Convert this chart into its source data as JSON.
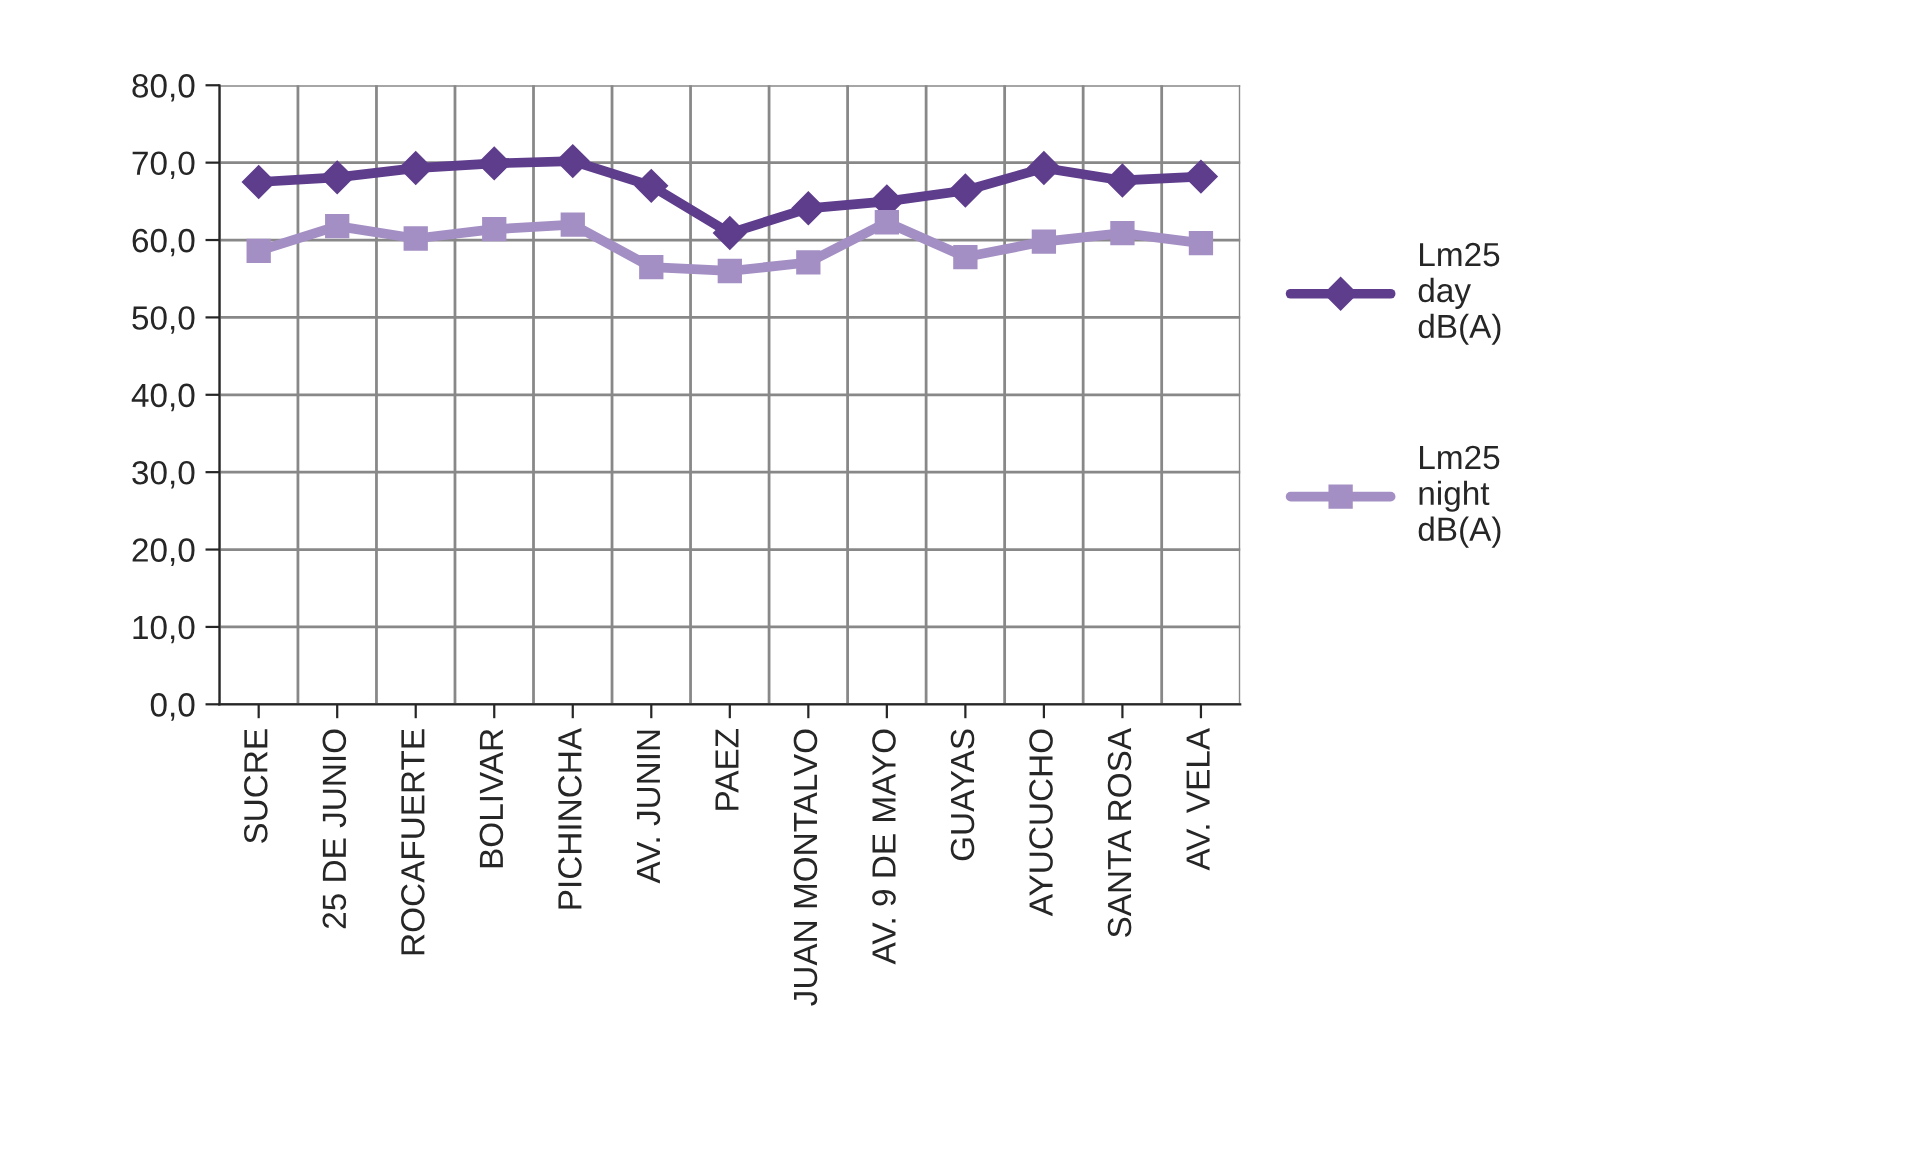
{
  "chart_data": {
    "type": "line",
    "categories": [
      "SUCRE",
      "25 DE JUNIO",
      "ROCAFUERTE",
      "BOLIVAR",
      "PICHINCHA",
      "AV. JUNIN",
      "PAEZ",
      "JUAN MONTALVO",
      "AV. 9 DE MAYO",
      "GUAYAS",
      "AYUCUCHO",
      "SANTA ROSA",
      "AV. VELA"
    ],
    "series": [
      {
        "name": "Lm25\nday\ndB(A)",
        "color": "#5e3d8c",
        "marker": "diamond",
        "values": [
          67.5,
          68.1,
          69.3,
          69.9,
          70.2,
          67.0,
          60.9,
          64.1,
          65.0,
          66.4,
          69.3,
          67.7,
          68.2
        ]
      },
      {
        "name": "Lm25\nnight\ndB(A)",
        "color": "#a48fc4",
        "marker": "square",
        "values": [
          58.6,
          61.8,
          60.2,
          61.4,
          62.0,
          56.5,
          56.0,
          57.1,
          62.3,
          57.8,
          59.8,
          60.9,
          59.6
        ]
      }
    ],
    "ylim": [
      0,
      80
    ],
    "yticks": [
      {
        "value": 0,
        "label": "0,0"
      },
      {
        "value": 10,
        "label": "10,0"
      },
      {
        "value": 20,
        "label": "20,0"
      },
      {
        "value": 30,
        "label": "30,0"
      },
      {
        "value": 40,
        "label": "40,0"
      },
      {
        "value": 50,
        "label": "50,0"
      },
      {
        "value": 60,
        "label": "60,0"
      },
      {
        "value": 70,
        "label": "70,0"
      },
      {
        "value": 80,
        "label": "80,0"
      }
    ],
    "grid": true,
    "legend": "right",
    "line_style": "solid"
  }
}
